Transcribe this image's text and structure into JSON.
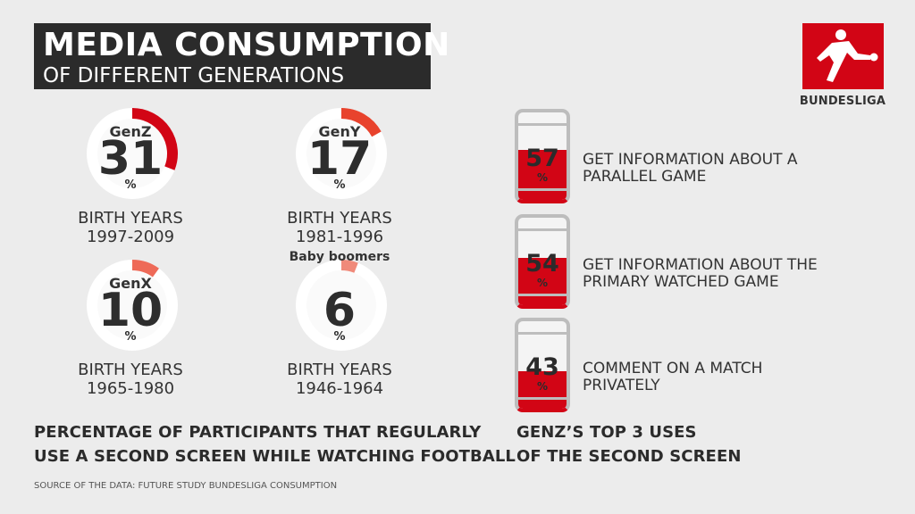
{
  "title": {
    "line1": "MEDIA CONSUMPTION",
    "line2": "OF DIFFERENT GENERATIONS"
  },
  "logo": {
    "text": "BUNDESLIGA",
    "color": "#d20515",
    "icon": "bundesliga-player-icon"
  },
  "chart_data": [
    {
      "type": "pie",
      "categories": [
        "GenZ",
        "GenY",
        "GenX",
        "Baby boomers"
      ],
      "values": [
        31,
        17,
        10,
        6
      ],
      "unit": "%",
      "birth_label": "BIRTH YEARS",
      "birth_years": [
        "1997-2009",
        "1981-1996",
        "1965-1980",
        "1946-1964"
      ],
      "colors": [
        "#d20515",
        "#e8432d",
        "#ee6a58",
        "#f08a7a"
      ],
      "caption": [
        "PERCENTAGE OF PARTICIPANTS THAT REGULARLY",
        "USE A SECOND SCREEN WHILE WATCHING FOOTBALL"
      ]
    },
    {
      "type": "bar",
      "categories": [
        "GET INFORMATION ABOUT A PARALLEL GAME",
        "GET INFORMATION ABOUT THE PRIMARY WATCHED GAME",
        "COMMENT ON A MATCH PRIVATELY"
      ],
      "labels": [
        [
          "GET INFORMATION ABOUT A",
          "PARALLEL GAME"
        ],
        [
          "GET INFORMATION ABOUT THE",
          "PRIMARY WATCHED GAME"
        ],
        [
          "COMMENT ON A MATCH",
          "PRIVATELY"
        ]
      ],
      "values": [
        57,
        54,
        43
      ],
      "unit": "%",
      "color": "#d20515",
      "caption": [
        "GENZ’S TOP 3 USES",
        "OF THE SECOND SCREEN"
      ]
    }
  ],
  "source": "SOURCE OF THE DATA: FUTURE STUDY BUNDESLIGA CONSUMPTION"
}
